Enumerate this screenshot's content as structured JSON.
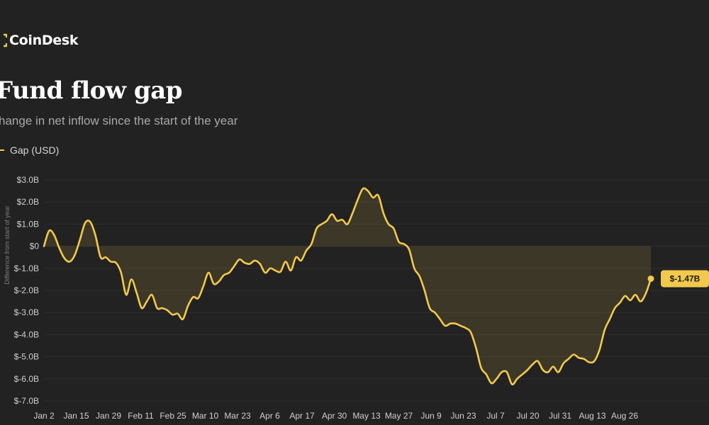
{
  "brand": {
    "name": "CoinDesk",
    "accent": "#f2c94c"
  },
  "chart_data": {
    "type": "area",
    "title": "Fund flow gap",
    "subtitle": "hange in net inflow since the start of the year",
    "legend_label": "Gap (USD)",
    "ylabel": "Difference from start of year",
    "ylim": [
      -7.0,
      3.0
    ],
    "yticks": [
      {
        "v": 3.0,
        "label": "$3.0B"
      },
      {
        "v": 2.0,
        "label": "$2.0B"
      },
      {
        "v": 1.0,
        "label": "$1.0B"
      },
      {
        "v": 0.0,
        "label": "$0"
      },
      {
        "v": -1.0,
        "label": "$-1.0B"
      },
      {
        "v": -2.0,
        "label": "$-2.0B"
      },
      {
        "v": -3.0,
        "label": "$-3.0B"
      },
      {
        "v": -4.0,
        "label": "$-4.0B"
      },
      {
        "v": -5.0,
        "label": "$-5.0B"
      },
      {
        "v": -6.0,
        "label": "$-6.0B"
      },
      {
        "v": -7.0,
        "label": "$-7.0B"
      }
    ],
    "xticks": [
      "Jan 2",
      "Jan 15",
      "Jan 29",
      "Feb 11",
      "Feb 25",
      "Mar 10",
      "Mar 23",
      "Apr 6",
      "Apr 17",
      "Apr 30",
      "May 13",
      "May 27",
      "Jun 9",
      "Jun 23",
      "Jul 7",
      "Jul 20",
      "Jul 31",
      "Aug 13",
      "Aug 26"
    ],
    "grid": true,
    "line_color": "#f2c94c",
    "end_label": "$-1.47B",
    "series": [
      {
        "values": [
          0.0,
          0.7,
          0.5,
          -0.1,
          -0.55,
          -0.7,
          -0.4,
          0.3,
          1.05,
          1.1,
          0.5,
          -0.5,
          -0.5,
          -0.7,
          -0.75,
          -1.2,
          -2.2,
          -1.5,
          -2.1,
          -2.8,
          -2.5,
          -2.2,
          -2.8,
          -2.8,
          -2.9,
          -3.1,
          -3.05,
          -3.3,
          -2.7,
          -2.3,
          -2.35,
          -1.8,
          -1.2,
          -1.7,
          -1.6,
          -1.3,
          -1.2,
          -0.9,
          -0.6,
          -0.75,
          -0.8,
          -0.65,
          -0.8,
          -1.2,
          -1.0,
          -1.1,
          -1.15,
          -0.7,
          -1.1,
          -0.5,
          -0.65,
          -0.2,
          0.1,
          0.8,
          1.0,
          1.15,
          1.45,
          1.15,
          1.2,
          1.0,
          1.5,
          2.1,
          2.6,
          2.5,
          2.2,
          2.3,
          1.5,
          1.0,
          0.8,
          0.2,
          0.1,
          -0.15,
          -1.0,
          -1.35,
          -2.0,
          -2.8,
          -3.0,
          -3.3,
          -3.6,
          -3.5,
          -3.5,
          -3.6,
          -3.7,
          -3.9,
          -4.6,
          -5.5,
          -5.8,
          -6.2,
          -6.0,
          -5.7,
          -5.7,
          -6.25,
          -6.0,
          -5.8,
          -5.6,
          -5.35,
          -5.2,
          -5.6,
          -5.7,
          -5.45,
          -5.7,
          -5.3,
          -5.1,
          -4.9,
          -5.05,
          -5.1,
          -5.25,
          -5.2,
          -4.7,
          -3.8,
          -3.3,
          -2.8,
          -2.55,
          -2.25,
          -2.45,
          -2.2,
          -2.5,
          -2.15,
          -1.47
        ]
      }
    ]
  }
}
